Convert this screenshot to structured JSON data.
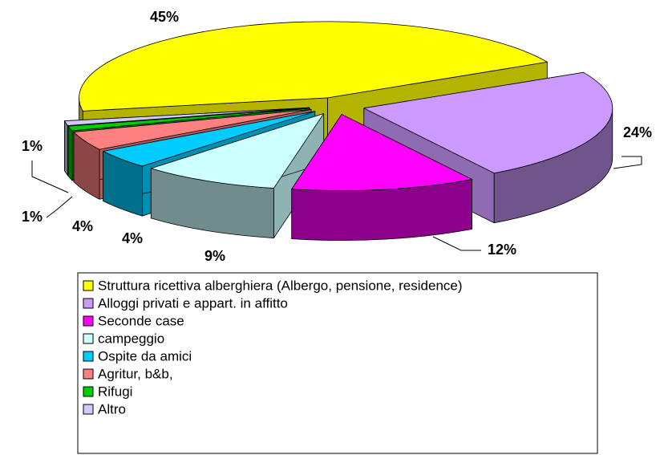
{
  "chart_data": {
    "type": "pie",
    "categories": [
      "Struttura ricettiva alberghiera (Albergo, pensione, residence)",
      "Alloggi privati e appart. in affitto",
      "Seconde case",
      "campeggio",
      "Ospite da amici",
      "Agritur, b&b,",
      "Rifugi",
      "Altro"
    ],
    "values": [
      45,
      24,
      12,
      9,
      4,
      4,
      1,
      1
    ],
    "value_labels": [
      "45%",
      "24%",
      "12%",
      "9%",
      "4%",
      "4%",
      "1%",
      "1%"
    ],
    "colors": [
      "#ffff00",
      "#cc99ff",
      "#ff00ff",
      "#ccffff",
      "#00ccff",
      "#ff8080",
      "#00cc00",
      "#ccccff"
    ],
    "legend": "bottom"
  }
}
